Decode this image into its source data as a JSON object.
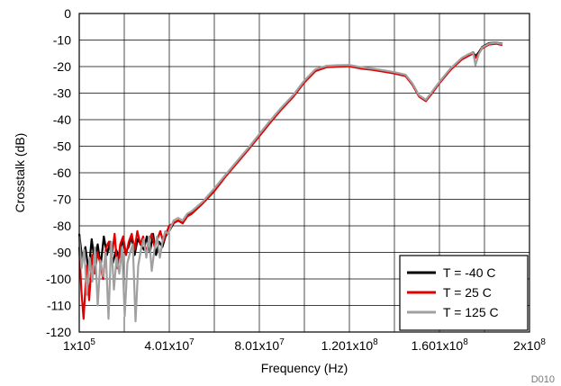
{
  "figure_id": "D010",
  "chart_data": {
    "type": "line",
    "title": "",
    "xlabel": "Frequency (Hz)",
    "ylabel": "Crosstalk (dB)",
    "xlim": [
      100000,
      200000000
    ],
    "ylim": [
      -120,
      0
    ],
    "x_scale": "linear",
    "grid": true,
    "legend_position": "bottom-right",
    "x_ticks": [
      {
        "value": 100000,
        "mantissa": "1x10",
        "exp": "5"
      },
      {
        "value": 40100000,
        "mantissa": "4.01x10",
        "exp": "7"
      },
      {
        "value": 80100000,
        "mantissa": "8.01x10",
        "exp": "7"
      },
      {
        "value": 120100000,
        "mantissa": "1.201x10",
        "exp": "8"
      },
      {
        "value": 160100000,
        "mantissa": "1.601x10",
        "exp": "8"
      },
      {
        "value": 200000000,
        "mantissa": "2x10",
        "exp": "8"
      }
    ],
    "y_ticks": [
      "0",
      "-10",
      "-20",
      "-30",
      "-40",
      "-50",
      "-60",
      "-70",
      "-80",
      "-90",
      "-100",
      "-110",
      "-120"
    ],
    "series": [
      {
        "name": "T = -40 C",
        "color": "#000000",
        "x": [
          100000,
          1500000,
          2800000,
          4300000,
          5600000,
          6900000,
          8300000,
          9600000,
          11000000,
          12400000,
          13700000,
          15000000,
          16500000,
          17800000,
          19200000,
          20600000,
          22000000,
          23300000,
          24700000,
          26000000,
          27400000,
          28800000,
          30100000,
          31500000,
          32900000,
          34200000,
          35600000,
          37000000,
          38400000,
          40000000,
          42000000,
          44000000,
          46000000,
          48000000,
          50000000,
          55000000,
          60000000,
          65000000,
          70000000,
          75000000,
          80000000,
          85000000,
          90000000,
          95000000,
          100000000,
          105000000,
          110000000,
          115000000,
          120000000,
          125000000,
          130000000,
          135000000,
          140000000,
          145000000,
          148000000,
          151000000,
          154000000,
          157000000,
          160000000,
          165000000,
          170000000,
          173000000,
          175000000,
          176000000,
          177500000,
          179000000,
          182000000,
          185000000,
          188000000
        ],
        "y": [
          -83,
          -93,
          -88,
          -97,
          -85,
          -93,
          -87,
          -95,
          -84,
          -91,
          -86,
          -94,
          -89,
          -92,
          -85,
          -90,
          -88,
          -84,
          -91,
          -85,
          -87,
          -89,
          -84,
          -90,
          -83,
          -91,
          -86,
          -88,
          -84,
          -82,
          -79,
          -78,
          -79,
          -76,
          -75,
          -71,
          -66.5,
          -61,
          -56,
          -51,
          -45.8,
          -40.5,
          -35.5,
          -31,
          -25.5,
          -21.2,
          -19.8,
          -19.6,
          -19.5,
          -20.3,
          -20.8,
          -21.5,
          -22.2,
          -23.2,
          -26.5,
          -31,
          -32.8,
          -29.5,
          -26,
          -20.8,
          -16.8,
          -15.4,
          -14.6,
          -16.2,
          -14.6,
          -12.6,
          -11.2,
          -10.9,
          -11.4
        ]
      },
      {
        "name": "T = 25 C",
        "color": "#e00000",
        "x": [
          100000,
          1000000,
          2000000,
          3400000,
          4500000,
          5800000,
          7000000,
          8200000,
          9400000,
          10700000,
          12000000,
          13300000,
          14500000,
          15800000,
          17000000,
          18300000,
          19600000,
          20900000,
          22100000,
          23400000,
          24700000,
          25900000,
          27200000,
          28500000,
          29700000,
          31000000,
          32300000,
          33600000,
          34800000,
          36100000,
          37400000,
          38700000,
          40000000,
          42000000,
          44000000,
          46000000,
          48000000,
          50000000,
          55000000,
          60000000,
          65000000,
          70000000,
          75000000,
          80000000,
          85000000,
          90000000,
          95000000,
          100000000,
          105000000,
          110000000,
          115000000,
          120000000,
          125000000,
          130000000,
          135000000,
          140000000,
          145000000,
          148000000,
          151000000,
          154000000,
          157000000,
          160000000,
          165000000,
          170000000,
          173000000,
          175000000,
          176000000,
          177500000,
          179000000,
          182000000,
          185000000,
          188000000
        ],
        "y": [
          -88,
          -104,
          -115,
          -95,
          -108,
          -91,
          -98,
          -90,
          -94,
          -100,
          -88,
          -86,
          -92,
          -83,
          -96,
          -87,
          -84,
          -91,
          -86,
          -83,
          -89,
          -82,
          -87,
          -84,
          -90,
          -86,
          -83,
          -88,
          -85,
          -82,
          -86,
          -83,
          -80,
          -79,
          -78,
          -79,
          -76.5,
          -75.5,
          -71.5,
          -67,
          -61.5,
          -56.5,
          -51.5,
          -46.3,
          -41,
          -36,
          -31.5,
          -26,
          -21.7,
          -20.2,
          -20,
          -19.9,
          -20.7,
          -21.2,
          -21.9,
          -22.6,
          -23.6,
          -26.8,
          -31.3,
          -33,
          -29.8,
          -26.3,
          -21.2,
          -17.3,
          -15.9,
          -15.1,
          -16.7,
          -15.1,
          -13.1,
          -11.7,
          -11.4,
          -11.9
        ]
      },
      {
        "name": "T = 125 C",
        "color": "#a0a0a0",
        "x": [
          100000,
          1100000,
          2300000,
          3500000,
          4700000,
          5900000,
          7100000,
          8300000,
          9500000,
          10700000,
          11900000,
          13100000,
          14300000,
          15500000,
          16700000,
          17900000,
          19100000,
          20300000,
          21500000,
          22700000,
          23900000,
          25100000,
          26300000,
          27500000,
          28700000,
          29900000,
          31100000,
          32300000,
          33500000,
          34700000,
          35900000,
          37100000,
          38300000,
          39500000,
          42000000,
          44000000,
          46000000,
          48000000,
          50000000,
          55000000,
          60000000,
          65000000,
          70000000,
          75000000,
          80000000,
          85000000,
          90000000,
          95000000,
          100000000,
          105000000,
          110000000,
          115000000,
          120000000,
          125000000,
          130000000,
          135000000,
          140000000,
          145000000,
          148000000,
          151000000,
          154000000,
          157000000,
          160000000,
          165000000,
          170000000,
          173000000,
          175000000,
          176000000,
          177500000,
          179000000,
          182000000,
          185000000,
          188000000
        ],
        "y": [
          -84,
          -96,
          -89,
          -106,
          -92,
          -101,
          -88,
          -110,
          -93,
          -99,
          -90,
          -115,
          -86,
          -104,
          -92,
          -98,
          -88,
          -114,
          -94,
          -90,
          -87,
          -116,
          -95,
          -89,
          -85,
          -92,
          -84,
          -97,
          -89,
          -84,
          -92,
          -86,
          -82,
          -83,
          -78,
          -77,
          -78,
          -75.5,
          -74.5,
          -70.8,
          -66,
          -60.8,
          -55.8,
          -50.8,
          -45.5,
          -40.2,
          -35.3,
          -30.8,
          -25.3,
          -21,
          -19.7,
          -19.5,
          -19.4,
          -20.2,
          -20.7,
          -21.4,
          -22.1,
          -23.1,
          -26.3,
          -30.8,
          -32.5,
          -29.2,
          -25.8,
          -20.6,
          -16.7,
          -15.3,
          -14.7,
          -19.5,
          -15.3,
          -12.8,
          -11.4,
          -11,
          -11.5
        ]
      }
    ]
  }
}
